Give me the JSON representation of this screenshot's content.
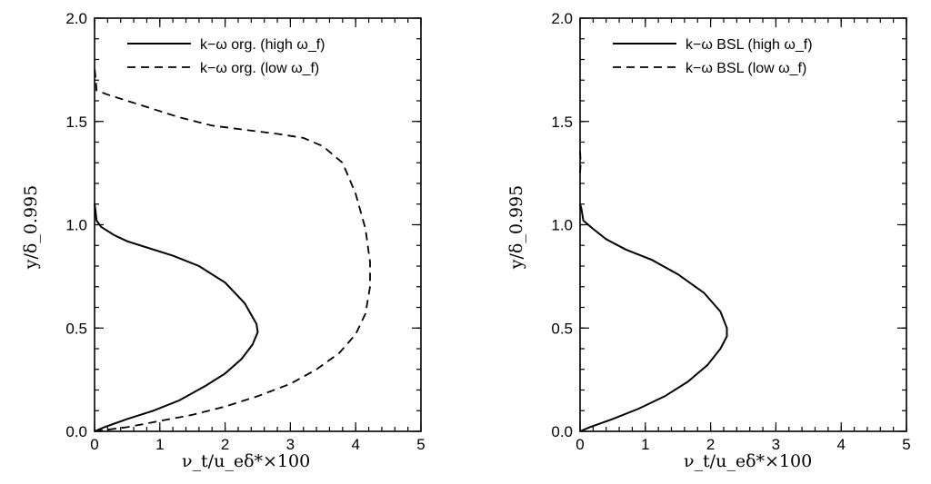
{
  "chart_data": [
    {
      "type": "line",
      "xlabel": "ν_t/u_eδ*×100",
      "ylabel": "y/δ_0.995",
      "xlim": [
        0,
        5
      ],
      "ylim": [
        0,
        2
      ],
      "xticks": [
        "0",
        "1",
        "2",
        "3",
        "4",
        "5"
      ],
      "yticks": [
        "0.0",
        "0.5",
        "1.0",
        "1.5",
        "2.0"
      ],
      "legend_position": "top-right",
      "series": [
        {
          "name": "k−ω org. (high ω_f)",
          "style": "solid",
          "points": [
            [
              0.0,
              0.0
            ],
            [
              0.15,
              0.02
            ],
            [
              0.5,
              0.06
            ],
            [
              0.9,
              0.1
            ],
            [
              1.3,
              0.15
            ],
            [
              1.7,
              0.22
            ],
            [
              2.0,
              0.28
            ],
            [
              2.25,
              0.35
            ],
            [
              2.42,
              0.42
            ],
            [
              2.5,
              0.48
            ],
            [
              2.48,
              0.52
            ],
            [
              2.3,
              0.62
            ],
            [
              2.0,
              0.72
            ],
            [
              1.6,
              0.8
            ],
            [
              1.2,
              0.85
            ],
            [
              0.8,
              0.89
            ],
            [
              0.5,
              0.92
            ],
            [
              0.3,
              0.95
            ],
            [
              0.1,
              0.99
            ],
            [
              0.03,
              1.02
            ],
            [
              0.01,
              1.08
            ],
            [
              0.0,
              1.1
            ]
          ]
        },
        {
          "name": "k−ω org. (low ω_f)",
          "style": "dashed",
          "points": [
            [
              0.0,
              0.0
            ],
            [
              0.5,
              0.02
            ],
            [
              1.0,
              0.05
            ],
            [
              1.5,
              0.08
            ],
            [
              2.0,
              0.12
            ],
            [
              2.5,
              0.17
            ],
            [
              3.0,
              0.23
            ],
            [
              3.4,
              0.3
            ],
            [
              3.75,
              0.38
            ],
            [
              4.0,
              0.47
            ],
            [
              4.15,
              0.57
            ],
            [
              4.22,
              0.7
            ],
            [
              4.22,
              0.82
            ],
            [
              4.15,
              0.98
            ],
            [
              4.0,
              1.15
            ],
            [
              3.8,
              1.3
            ],
            [
              3.5,
              1.38
            ],
            [
              3.2,
              1.42
            ],
            [
              2.8,
              1.44
            ],
            [
              2.3,
              1.46
            ],
            [
              1.8,
              1.48
            ],
            [
              1.3,
              1.52
            ],
            [
              0.9,
              1.56
            ],
            [
              0.5,
              1.6
            ],
            [
              0.2,
              1.63
            ],
            [
              0.03,
              1.65
            ],
            [
              0.02,
              1.7
            ],
            [
              0.0,
              1.76
            ]
          ]
        }
      ]
    },
    {
      "type": "line",
      "xlabel": "ν_t/u_eδ*×100",
      "ylabel": "y/δ_0.995",
      "xlim": [
        0,
        5
      ],
      "ylim": [
        0,
        2
      ],
      "xticks": [
        "0",
        "1",
        "2",
        "3",
        "4",
        "5"
      ],
      "yticks": [
        "0.0",
        "0.5",
        "1.0",
        "1.5",
        "2.0"
      ],
      "legend_position": "top-right",
      "series": [
        {
          "name": "k−ω BSL (high ω_f)",
          "style": "solid",
          "points": [
            [
              0.0,
              0.0
            ],
            [
              0.15,
              0.02
            ],
            [
              0.5,
              0.06
            ],
            [
              0.9,
              0.11
            ],
            [
              1.3,
              0.17
            ],
            [
              1.65,
              0.24
            ],
            [
              1.95,
              0.32
            ],
            [
              2.15,
              0.4
            ],
            [
              2.25,
              0.46
            ],
            [
              2.25,
              0.5
            ],
            [
              2.15,
              0.58
            ],
            [
              1.9,
              0.67
            ],
            [
              1.5,
              0.76
            ],
            [
              1.1,
              0.83
            ],
            [
              0.7,
              0.88
            ],
            [
              0.4,
              0.93
            ],
            [
              0.2,
              0.98
            ],
            [
              0.05,
              1.02
            ],
            [
              0.02,
              1.08
            ],
            [
              0.0,
              1.1
            ]
          ]
        },
        {
          "name": "k−ω BSL (low ω_f)",
          "style": "dashed",
          "points": [
            [
              0.0,
              1.25
            ],
            [
              0.01,
              1.3
            ],
            [
              0.0,
              1.36
            ]
          ]
        }
      ]
    }
  ]
}
